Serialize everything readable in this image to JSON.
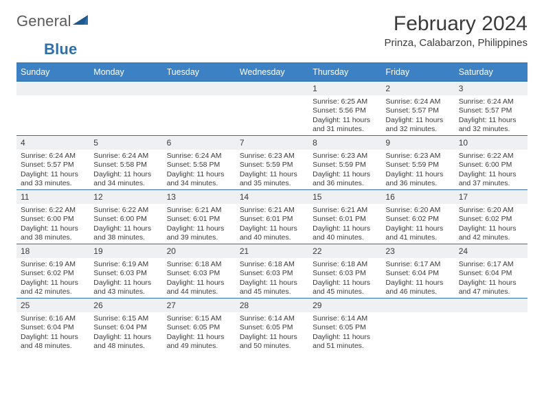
{
  "brand": {
    "text1": "General",
    "text2": "Blue"
  },
  "title": "February 2024",
  "location": "Prinza, Calabarzon, Philippines",
  "colors": {
    "header_bg": "#3b81c4",
    "header_text": "#ffffff",
    "rule": "#2f6fa7",
    "daynum_bg": "#eef0f2",
    "text": "#3a3a3a",
    "logo_gray": "#5a5a5a",
    "logo_blue": "#2f6fa7",
    "page_bg": "#ffffff"
  },
  "typography": {
    "title_fontsize": 30,
    "location_fontsize": 15,
    "dayheader_fontsize": 12.5,
    "daynum_fontsize": 12,
    "body_fontsize": 10.5,
    "logo_fontsize": 22
  },
  "day_headers": [
    "Sunday",
    "Monday",
    "Tuesday",
    "Wednesday",
    "Thursday",
    "Friday",
    "Saturday"
  ],
  "weeks": [
    [
      {
        "n": "",
        "sr": "",
        "ss": "",
        "dl1": "",
        "dl2": ""
      },
      {
        "n": "",
        "sr": "",
        "ss": "",
        "dl1": "",
        "dl2": ""
      },
      {
        "n": "",
        "sr": "",
        "ss": "",
        "dl1": "",
        "dl2": ""
      },
      {
        "n": "",
        "sr": "",
        "ss": "",
        "dl1": "",
        "dl2": ""
      },
      {
        "n": "1",
        "sr": "Sunrise: 6:25 AM",
        "ss": "Sunset: 5:56 PM",
        "dl1": "Daylight: 11 hours",
        "dl2": "and 31 minutes."
      },
      {
        "n": "2",
        "sr": "Sunrise: 6:24 AM",
        "ss": "Sunset: 5:57 PM",
        "dl1": "Daylight: 11 hours",
        "dl2": "and 32 minutes."
      },
      {
        "n": "3",
        "sr": "Sunrise: 6:24 AM",
        "ss": "Sunset: 5:57 PM",
        "dl1": "Daylight: 11 hours",
        "dl2": "and 32 minutes."
      }
    ],
    [
      {
        "n": "4",
        "sr": "Sunrise: 6:24 AM",
        "ss": "Sunset: 5:57 PM",
        "dl1": "Daylight: 11 hours",
        "dl2": "and 33 minutes."
      },
      {
        "n": "5",
        "sr": "Sunrise: 6:24 AM",
        "ss": "Sunset: 5:58 PM",
        "dl1": "Daylight: 11 hours",
        "dl2": "and 34 minutes."
      },
      {
        "n": "6",
        "sr": "Sunrise: 6:24 AM",
        "ss": "Sunset: 5:58 PM",
        "dl1": "Daylight: 11 hours",
        "dl2": "and 34 minutes."
      },
      {
        "n": "7",
        "sr": "Sunrise: 6:23 AM",
        "ss": "Sunset: 5:59 PM",
        "dl1": "Daylight: 11 hours",
        "dl2": "and 35 minutes."
      },
      {
        "n": "8",
        "sr": "Sunrise: 6:23 AM",
        "ss": "Sunset: 5:59 PM",
        "dl1": "Daylight: 11 hours",
        "dl2": "and 36 minutes."
      },
      {
        "n": "9",
        "sr": "Sunrise: 6:23 AM",
        "ss": "Sunset: 5:59 PM",
        "dl1": "Daylight: 11 hours",
        "dl2": "and 36 minutes."
      },
      {
        "n": "10",
        "sr": "Sunrise: 6:22 AM",
        "ss": "Sunset: 6:00 PM",
        "dl1": "Daylight: 11 hours",
        "dl2": "and 37 minutes."
      }
    ],
    [
      {
        "n": "11",
        "sr": "Sunrise: 6:22 AM",
        "ss": "Sunset: 6:00 PM",
        "dl1": "Daylight: 11 hours",
        "dl2": "and 38 minutes."
      },
      {
        "n": "12",
        "sr": "Sunrise: 6:22 AM",
        "ss": "Sunset: 6:00 PM",
        "dl1": "Daylight: 11 hours",
        "dl2": "and 38 minutes."
      },
      {
        "n": "13",
        "sr": "Sunrise: 6:21 AM",
        "ss": "Sunset: 6:01 PM",
        "dl1": "Daylight: 11 hours",
        "dl2": "and 39 minutes."
      },
      {
        "n": "14",
        "sr": "Sunrise: 6:21 AM",
        "ss": "Sunset: 6:01 PM",
        "dl1": "Daylight: 11 hours",
        "dl2": "and 40 minutes."
      },
      {
        "n": "15",
        "sr": "Sunrise: 6:21 AM",
        "ss": "Sunset: 6:01 PM",
        "dl1": "Daylight: 11 hours",
        "dl2": "and 40 minutes."
      },
      {
        "n": "16",
        "sr": "Sunrise: 6:20 AM",
        "ss": "Sunset: 6:02 PM",
        "dl1": "Daylight: 11 hours",
        "dl2": "and 41 minutes."
      },
      {
        "n": "17",
        "sr": "Sunrise: 6:20 AM",
        "ss": "Sunset: 6:02 PM",
        "dl1": "Daylight: 11 hours",
        "dl2": "and 42 minutes."
      }
    ],
    [
      {
        "n": "18",
        "sr": "Sunrise: 6:19 AM",
        "ss": "Sunset: 6:02 PM",
        "dl1": "Daylight: 11 hours",
        "dl2": "and 42 minutes."
      },
      {
        "n": "19",
        "sr": "Sunrise: 6:19 AM",
        "ss": "Sunset: 6:03 PM",
        "dl1": "Daylight: 11 hours",
        "dl2": "and 43 minutes."
      },
      {
        "n": "20",
        "sr": "Sunrise: 6:18 AM",
        "ss": "Sunset: 6:03 PM",
        "dl1": "Daylight: 11 hours",
        "dl2": "and 44 minutes."
      },
      {
        "n": "21",
        "sr": "Sunrise: 6:18 AM",
        "ss": "Sunset: 6:03 PM",
        "dl1": "Daylight: 11 hours",
        "dl2": "and 45 minutes."
      },
      {
        "n": "22",
        "sr": "Sunrise: 6:18 AM",
        "ss": "Sunset: 6:03 PM",
        "dl1": "Daylight: 11 hours",
        "dl2": "and 45 minutes."
      },
      {
        "n": "23",
        "sr": "Sunrise: 6:17 AM",
        "ss": "Sunset: 6:04 PM",
        "dl1": "Daylight: 11 hours",
        "dl2": "and 46 minutes."
      },
      {
        "n": "24",
        "sr": "Sunrise: 6:17 AM",
        "ss": "Sunset: 6:04 PM",
        "dl1": "Daylight: 11 hours",
        "dl2": "and 47 minutes."
      }
    ],
    [
      {
        "n": "25",
        "sr": "Sunrise: 6:16 AM",
        "ss": "Sunset: 6:04 PM",
        "dl1": "Daylight: 11 hours",
        "dl2": "and 48 minutes."
      },
      {
        "n": "26",
        "sr": "Sunrise: 6:15 AM",
        "ss": "Sunset: 6:04 PM",
        "dl1": "Daylight: 11 hours",
        "dl2": "and 48 minutes."
      },
      {
        "n": "27",
        "sr": "Sunrise: 6:15 AM",
        "ss": "Sunset: 6:05 PM",
        "dl1": "Daylight: 11 hours",
        "dl2": "and 49 minutes."
      },
      {
        "n": "28",
        "sr": "Sunrise: 6:14 AM",
        "ss": "Sunset: 6:05 PM",
        "dl1": "Daylight: 11 hours",
        "dl2": "and 50 minutes."
      },
      {
        "n": "29",
        "sr": "Sunrise: 6:14 AM",
        "ss": "Sunset: 6:05 PM",
        "dl1": "Daylight: 11 hours",
        "dl2": "and 51 minutes."
      },
      {
        "n": "",
        "sr": "",
        "ss": "",
        "dl1": "",
        "dl2": ""
      },
      {
        "n": "",
        "sr": "",
        "ss": "",
        "dl1": "",
        "dl2": ""
      }
    ]
  ]
}
